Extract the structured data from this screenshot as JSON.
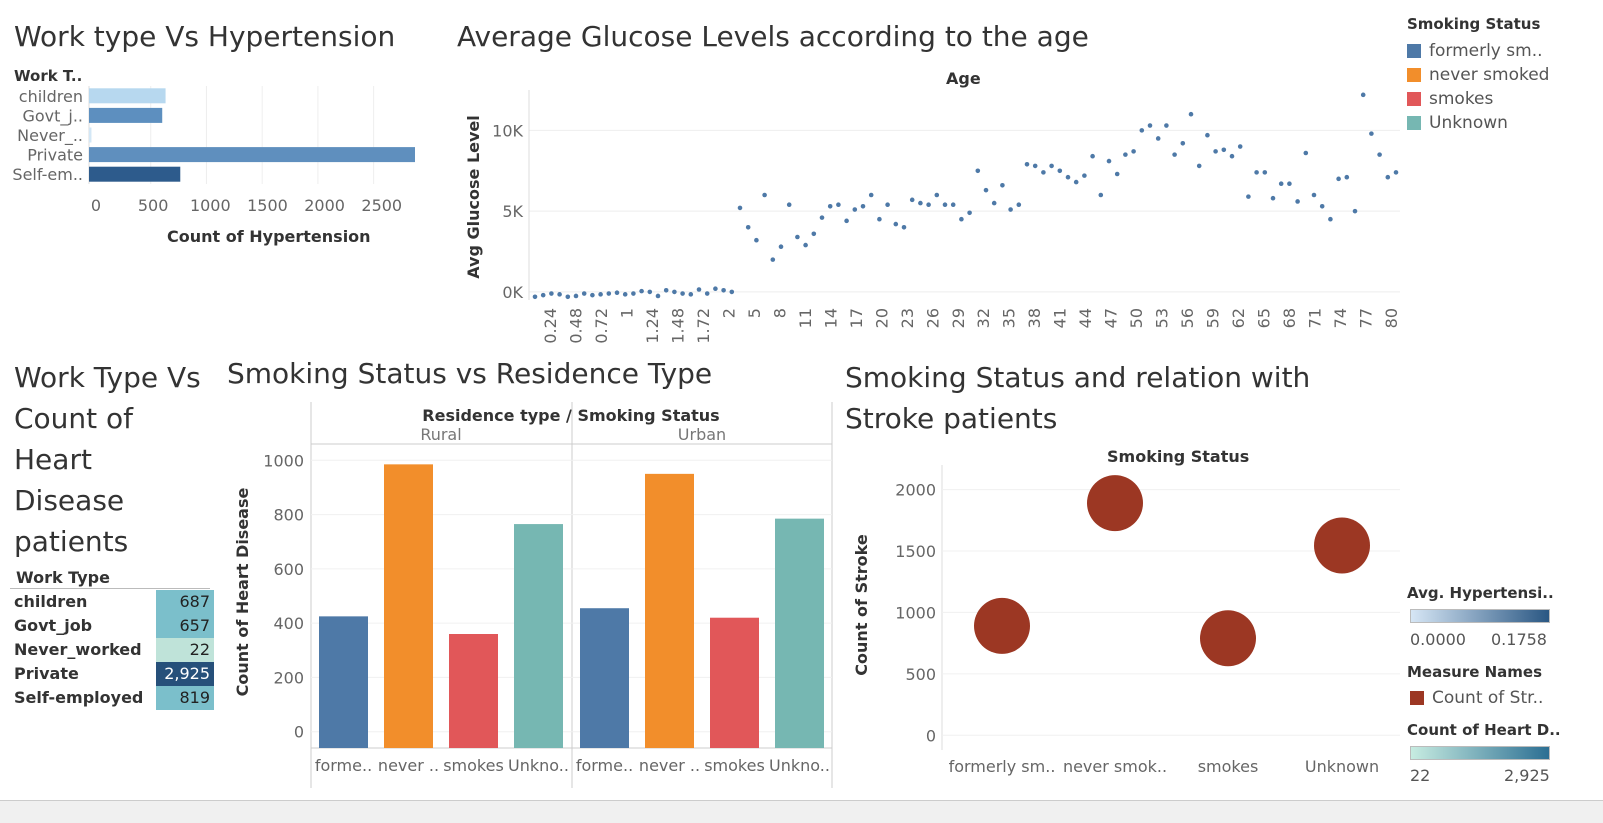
{
  "chart_data": [
    {
      "type": "bar",
      "orientation": "horizontal",
      "title": "Work type Vs Hypertension",
      "row_header": "Work T..",
      "categories": [
        "children",
        "Govt_j..",
        "Never_..",
        "Private",
        "Self-em.."
      ],
      "values": [
        687,
        657,
        22,
        2925,
        819
      ],
      "bar_colors": [
        "#b7d8ef",
        "#5d8fbf",
        "#d3e7f6",
        "#5f8fbe",
        "#2d5b8c"
      ],
      "xlabel": "Count of Hypertension",
      "xticks": [
        "0",
        "500",
        "1000",
        "1500",
        "2000",
        "2500"
      ],
      "xlim": [
        0,
        2925
      ]
    },
    {
      "type": "scatter",
      "title": "Average Glucose Levels according to the age",
      "xheader": "Age",
      "ylabel": "Avg Glucose Level",
      "yticks": [
        "0K",
        "5K",
        "10K"
      ],
      "ylim": [
        -500,
        12500
      ],
      "xticks": [
        "0.24",
        "0.48",
        "0.72",
        "1",
        "1.24",
        "1.48",
        "1.72",
        "2",
        "5",
        "8",
        "11",
        "14",
        "17",
        "20",
        "23",
        "26",
        "29",
        "32",
        "35",
        "38",
        "41",
        "44",
        "47",
        "50",
        "53",
        "56",
        "59",
        "62",
        "65",
        "68",
        "71",
        "74",
        "77",
        "80"
      ],
      "color": "#4e79a7",
      "values": [
        -300,
        -200,
        -100,
        -150,
        -300,
        -250,
        -100,
        -200,
        -150,
        -100,
        -50,
        -150,
        -100,
        50,
        0,
        -250,
        100,
        0,
        -100,
        -150,
        150,
        -100,
        200,
        100,
        0,
        5200,
        4000,
        3200,
        6000,
        2000,
        2800,
        5400,
        3400,
        2900,
        3600,
        4600,
        5300,
        5400,
        4400,
        5100,
        5300,
        6000,
        4500,
        5400,
        4200,
        4000,
        5700,
        5500,
        5400,
        6000,
        5400,
        5400,
        4500,
        4900,
        7500,
        6300,
        5500,
        6600,
        5100,
        5400,
        7900,
        7800,
        7400,
        7800,
        7500,
        7100,
        6800,
        7200,
        8400,
        6000,
        8100,
        7300,
        8500,
        8700,
        10000,
        10300,
        9500,
        10300,
        8500,
        9200,
        11000,
        7800,
        9700,
        8700,
        8800,
        8400,
        9000,
        5900,
        7400,
        7400,
        5800,
        6700,
        6700,
        5600,
        8600,
        6000,
        5300,
        4500,
        7000,
        7100,
        5000,
        12200,
        9800,
        8500,
        7100,
        7400
      ]
    },
    {
      "type": "table",
      "title": "Work Type Vs Count of Heart Disease patients",
      "title_lines": [
        "Work Type Vs",
        "Count of",
        "Heart",
        "Disease",
        "patients"
      ],
      "column_header": "Work Type",
      "rows": [
        {
          "label": "children",
          "value": "687",
          "bg": "#7bbfcb",
          "fg": "#222"
        },
        {
          "label": "Govt_job",
          "value": "657",
          "bg": "#7bbfcb",
          "fg": "#222"
        },
        {
          "label": "Never_worked",
          "value": "22",
          "bg": "#bfe3d9",
          "fg": "#222"
        },
        {
          "label": "Private",
          "value": "2,925",
          "bg": "#26507a",
          "fg": "#fff"
        },
        {
          "label": "Self-employed",
          "value": "819",
          "bg": "#7bbfcb",
          "fg": "#222"
        }
      ]
    },
    {
      "type": "bar",
      "title": "Smoking Status vs Residence Type",
      "header": "Residence type /  Smoking Status",
      "ylabel": "Count of Heart Disease",
      "yticks": [
        "0",
        "200",
        "400",
        "600",
        "800",
        "1000"
      ],
      "ylim": [
        -60,
        1060
      ],
      "groups": [
        {
          "name": "Rural",
          "categories": [
            "forme..",
            "never ..",
            "smokes",
            "Unkno.."
          ],
          "values": [
            425,
            985,
            360,
            765
          ]
        },
        {
          "name": "Urban",
          "categories": [
            "forme..",
            "never ..",
            "smokes",
            "Unkno.."
          ],
          "values": [
            455,
            950,
            420,
            785
          ]
        }
      ],
      "colors": [
        "#4e79a7",
        "#f28e2b",
        "#e15759",
        "#76b7b2"
      ]
    },
    {
      "type": "scatter",
      "title": "Smoking Status and relation with Stroke patients",
      "title_lines": [
        "Smoking Status and relation with",
        "Stroke patients"
      ],
      "xheader": "Smoking Status",
      "ylabel": "Count of Stroke",
      "yticks": [
        "0",
        "500",
        "1000",
        "1500",
        "2000"
      ],
      "ylim": [
        -120,
        2200
      ],
      "categories": [
        "formerly sm..",
        "never smok..",
        "smokes",
        "Unknown"
      ],
      "values": [
        890,
        1890,
        790,
        1545
      ],
      "color": "#9c3723"
    }
  ],
  "legends": {
    "smoking_status": {
      "title": "Smoking Status",
      "items": [
        {
          "label": "formerly sm..",
          "color": "#4e79a7"
        },
        {
          "label": "never smoked",
          "color": "#f28e2b"
        },
        {
          "label": "smokes",
          "color": "#e15759"
        },
        {
          "label": "Unknown",
          "color": "#76b7b2"
        }
      ]
    },
    "avg_hypertension": {
      "title": "Avg. Hypertensi..",
      "min": "0.0000",
      "max": "0.1758",
      "color_low": "#d6e6f5",
      "color_high": "#2a5783"
    },
    "measure_names": {
      "title": "Measure Names",
      "items": [
        {
          "label": "Count of Str..",
          "color": "#9c3723"
        }
      ]
    },
    "count_heart": {
      "title": "Count of Heart D..",
      "min": "22",
      "max": "2,925",
      "color_low": "#c7ece1",
      "color_high": "#2c6f93"
    }
  }
}
